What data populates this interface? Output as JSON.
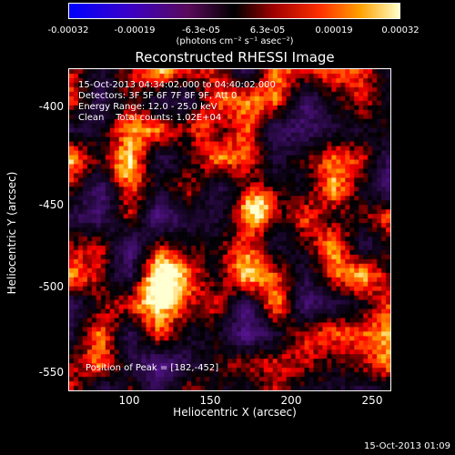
{
  "colorbar": {
    "ticks": [
      "-0.00032",
      "-0.00019",
      "-6.3e-05",
      "6.3e-05",
      "0.00019",
      "0.00032"
    ],
    "unit_label": "(photons cm⁻² s⁻¹ asec⁻²)"
  },
  "title": "Reconstructed RHESSI Image",
  "annotations": {
    "time_range": "15-Oct-2013 04:34:02.000 to 04:40:02.000",
    "detectors": "Detectors: 3F 5F 6F 7F 8F 9F, Att 0",
    "energy": "Energy Range: 12.0 - 25.0 keV",
    "clean": "Clean    Total counts: 1.02E+04",
    "peak": "Position of Peak = [182,-452]"
  },
  "axes": {
    "xlabel": "Heliocentric X (arcsec)",
    "ylabel": "Heliocentric Y (arcsec)",
    "xticks": [
      "100",
      "150",
      "200",
      "250"
    ],
    "yticks": [
      "-400",
      "-450",
      "-500",
      "-550"
    ]
  },
  "timestamp": "15-Oct-2013 01:09"
}
